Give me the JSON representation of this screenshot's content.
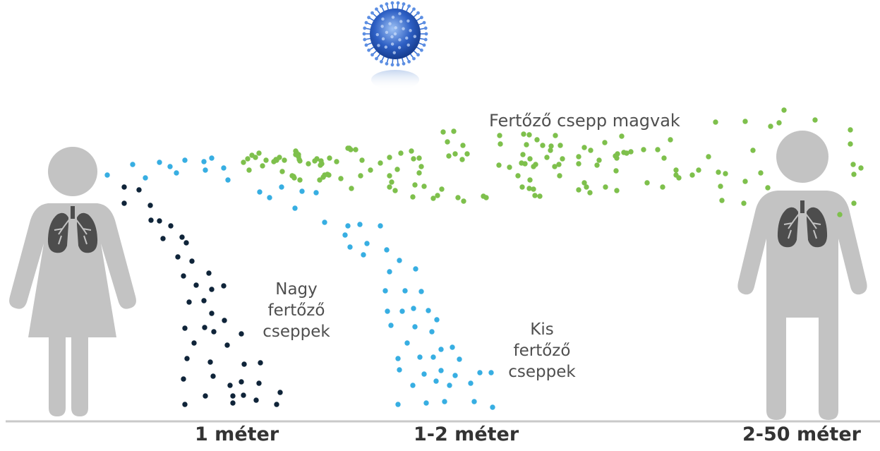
{
  "colors": {
    "person": "#c3c3c3",
    "lungs": "#4d4d4d",
    "large_droplets": "#0f2439",
    "small_droplets": "#37aee2",
    "nuclei": "#7ec04c",
    "virus": "#2d5fc4",
    "ground": "#c9c9c9",
    "label_text": "#4f4f4f",
    "distance_text": "#333333"
  },
  "icons": {
    "virus": "coronavirus-icon",
    "left_person": "woman-with-lungs-icon",
    "right_person": "man-with-lungs-icon"
  },
  "labels": {
    "nuclei": "Fertőző csepp magvak",
    "large": [
      "Nagy",
      "fertőző",
      "cseppek"
    ],
    "small": [
      "Kis",
      "fertőző",
      "cseppek"
    ]
  },
  "distances": [
    "1 méter",
    "1-2 méter",
    "2-50 méter"
  ]
}
